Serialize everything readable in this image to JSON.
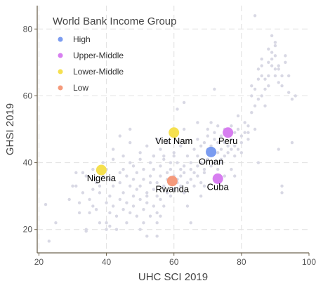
{
  "chart_data": {
    "type": "scatter",
    "title": "",
    "xlabel": "UHC SCI 2019",
    "ylabel": "GHSI 2019",
    "xlim": [
      19.5,
      100
    ],
    "ylim": [
      13,
      87
    ],
    "xticks": [
      20,
      40,
      60,
      80,
      100
    ],
    "yticks": [
      20,
      40,
      60,
      80
    ],
    "grid": "dashed, major ticks",
    "legend": {
      "title": "World Bank Income Group",
      "placement": "top-left",
      "entries": [
        {
          "label": "High",
          "color": "#7b9cf0"
        },
        {
          "label": "Upper-Middle",
          "color": "#d77ef0"
        },
        {
          "label": "Lower-Middle",
          "color": "#f5e04f"
        },
        {
          "label": "Low",
          "color": "#f59a7b"
        }
      ]
    },
    "background_point_color": "#d8d8e4",
    "highlighted": [
      {
        "label": "Viet Nam",
        "x": 60,
        "y": 49,
        "group": "Lower-Middle"
      },
      {
        "label": "Peru",
        "x": 76,
        "y": 49,
        "group": "Upper-Middle"
      },
      {
        "label": "Oman",
        "x": 71,
        "y": 43.2,
        "group": "High"
      },
      {
        "label": "Nigeria",
        "x": 38.5,
        "y": 37.8,
        "group": "Lower-Middle"
      },
      {
        "label": "Cuba",
        "x": 73,
        "y": 35.2,
        "group": "Upper-Middle"
      },
      {
        "label": "Rwanda",
        "x": 59.5,
        "y": 34.5,
        "group": "Low"
      }
    ],
    "background_points": [
      [
        23,
        16.5
      ],
      [
        22,
        27.5
      ],
      [
        25,
        22
      ],
      [
        29,
        29
      ],
      [
        30,
        33
      ],
      [
        31,
        37
      ],
      [
        31,
        33
      ],
      [
        32,
        28
      ],
      [
        32,
        25
      ],
      [
        33,
        31
      ],
      [
        33,
        37
      ],
      [
        34,
        36
      ],
      [
        34,
        20
      ],
      [
        34,
        19.5
      ],
      [
        35,
        25
      ],
      [
        35,
        29
      ],
      [
        36,
        27
      ],
      [
        36,
        32
      ],
      [
        36,
        38
      ],
      [
        37,
        26
      ],
      [
        37,
        34
      ],
      [
        38,
        33
      ],
      [
        38,
        22
      ],
      [
        38,
        31
      ],
      [
        39,
        36
      ],
      [
        39,
        40
      ],
      [
        40,
        28
      ],
      [
        40,
        22
      ],
      [
        40,
        20
      ],
      [
        40,
        38
      ],
      [
        41,
        21
      ],
      [
        41,
        25
      ],
      [
        41,
        30
      ],
      [
        41,
        35
      ],
      [
        42,
        27
      ],
      [
        42,
        33
      ],
      [
        42,
        41
      ],
      [
        42,
        44
      ],
      [
        43,
        20
      ],
      [
        43,
        24
      ],
      [
        44,
        29
      ],
      [
        44,
        37
      ],
      [
        44,
        34
      ],
      [
        45,
        26
      ],
      [
        45,
        31
      ],
      [
        45,
        42
      ],
      [
        45,
        38
      ],
      [
        46,
        22
      ],
      [
        46,
        36
      ],
      [
        46,
        28
      ],
      [
        47,
        25
      ],
      [
        47,
        33
      ],
      [
        47,
        40
      ],
      [
        47,
        46
      ],
      [
        48,
        30
      ],
      [
        48,
        27
      ],
      [
        48,
        35
      ],
      [
        48,
        39
      ],
      [
        49,
        24
      ],
      [
        49,
        32
      ],
      [
        49,
        37
      ],
      [
        50,
        29
      ],
      [
        50,
        20
      ],
      [
        50,
        33
      ],
      [
        50,
        41
      ],
      [
        50,
        43
      ],
      [
        51,
        22
      ],
      [
        51,
        26
      ],
      [
        51,
        35
      ],
      [
        51,
        38
      ],
      [
        52,
        30
      ],
      [
        52,
        28
      ],
      [
        52,
        45
      ],
      [
        52,
        31
      ],
      [
        53,
        24
      ],
      [
        53,
        34
      ],
      [
        53,
        36
      ],
      [
        53,
        40
      ],
      [
        54,
        27
      ],
      [
        54,
        32
      ],
      [
        54,
        38
      ],
      [
        54,
        42
      ],
      [
        55,
        25
      ],
      [
        55,
        30
      ],
      [
        55,
        34
      ],
      [
        55,
        47
      ],
      [
        55,
        22
      ],
      [
        56,
        29
      ],
      [
        56,
        36
      ],
      [
        56,
        39
      ],
      [
        56,
        44
      ],
      [
        57,
        33
      ],
      [
        57,
        27
      ],
      [
        57,
        41
      ],
      [
        58,
        31
      ],
      [
        58,
        37
      ],
      [
        58,
        35
      ],
      [
        58,
        46
      ],
      [
        59,
        30
      ],
      [
        59,
        40
      ],
      [
        59,
        38
      ],
      [
        60,
        32
      ],
      [
        60,
        36
      ],
      [
        60,
        42
      ],
      [
        60,
        43
      ],
      [
        61,
        35
      ],
      [
        61,
        34
      ],
      [
        61,
        56
      ],
      [
        61,
        40
      ],
      [
        62,
        33
      ],
      [
        62,
        38
      ],
      [
        62,
        45
      ],
      [
        62,
        36
      ],
      [
        63,
        31
      ],
      [
        63,
        39
      ],
      [
        63,
        37
      ],
      [
        63,
        50
      ],
      [
        64,
        27
      ],
      [
        64,
        34
      ],
      [
        64,
        42
      ],
      [
        65,
        35
      ],
      [
        65,
        38
      ],
      [
        65,
        40
      ],
      [
        66,
        37
      ],
      [
        66,
        33
      ],
      [
        66,
        44
      ],
      [
        67,
        36
      ],
      [
        67,
        39
      ],
      [
        67,
        42
      ],
      [
        67,
        47
      ],
      [
        68,
        34
      ],
      [
        68,
        40
      ],
      [
        68,
        45
      ],
      [
        69,
        46
      ],
      [
        69,
        38
      ],
      [
        69,
        37
      ],
      [
        70,
        44
      ],
      [
        70,
        41
      ],
      [
        70,
        50
      ],
      [
        70,
        48
      ],
      [
        71,
        45
      ],
      [
        71,
        39
      ],
      [
        71,
        52
      ],
      [
        72,
        47
      ],
      [
        72,
        40
      ],
      [
        72,
        49
      ],
      [
        72,
        62
      ],
      [
        73,
        43
      ],
      [
        73,
        46
      ],
      [
        73,
        38
      ],
      [
        73,
        51
      ],
      [
        74,
        44
      ],
      [
        74,
        41
      ],
      [
        74,
        48
      ],
      [
        74,
        40
      ],
      [
        75,
        46
      ],
      [
        75,
        42
      ],
      [
        75,
        50
      ],
      [
        75,
        36
      ],
      [
        76,
        45
      ],
      [
        76,
        43
      ],
      [
        77,
        47
      ],
      [
        77,
        44
      ],
      [
        77,
        51
      ],
      [
        78,
        45
      ],
      [
        78,
        42
      ],
      [
        78,
        49
      ],
      [
        78,
        36
      ],
      [
        79,
        44
      ],
      [
        79,
        50
      ],
      [
        80,
        48
      ],
      [
        80,
        46
      ],
      [
        80,
        43
      ],
      [
        81,
        49
      ],
      [
        81,
        52
      ],
      [
        82,
        47
      ],
      [
        82,
        49
      ],
      [
        82,
        51
      ],
      [
        83,
        60
      ],
      [
        83,
        63
      ],
      [
        83,
        55
      ],
      [
        84,
        62
      ],
      [
        84,
        57
      ],
      [
        84,
        84
      ],
      [
        84,
        50
      ],
      [
        85,
        65
      ],
      [
        85,
        59
      ],
      [
        85,
        68
      ],
      [
        86,
        60
      ],
      [
        86,
        66
      ],
      [
        86,
        71
      ],
      [
        86,
        69
      ],
      [
        87,
        62
      ],
      [
        87,
        65
      ],
      [
        87,
        57
      ],
      [
        88,
        70
      ],
      [
        88,
        66
      ],
      [
        88,
        74
      ],
      [
        88,
        63
      ],
      [
        89,
        71
      ],
      [
        89,
        69
      ],
      [
        89,
        78
      ],
      [
        89,
        73
      ],
      [
        90,
        68
      ],
      [
        90,
        66
      ],
      [
        90,
        76
      ],
      [
        90,
        72
      ],
      [
        90,
        75
      ],
      [
        91,
        64
      ],
      [
        91,
        68
      ],
      [
        91,
        69
      ],
      [
        91,
        44
      ],
      [
        92,
        63
      ],
      [
        92,
        66
      ],
      [
        92,
        31
      ],
      [
        92,
        33
      ],
      [
        93,
        70
      ],
      [
        93,
        72
      ],
      [
        94,
        66
      ],
      [
        94,
        61
      ],
      [
        95,
        59
      ],
      [
        95,
        46
      ],
      [
        96,
        60
      ],
      [
        44,
        48
      ],
      [
        54,
        42
      ],
      [
        47,
        50
      ],
      [
        68,
        30
      ],
      [
        69,
        33
      ],
      [
        85,
        40
      ],
      [
        52,
        18
      ],
      [
        55,
        18
      ],
      [
        56,
        24
      ],
      [
        57,
        42
      ],
      [
        63,
        58
      ],
      [
        65,
        22
      ],
      [
        67,
        52
      ],
      [
        77,
        38
      ],
      [
        79,
        54
      ]
    ]
  }
}
